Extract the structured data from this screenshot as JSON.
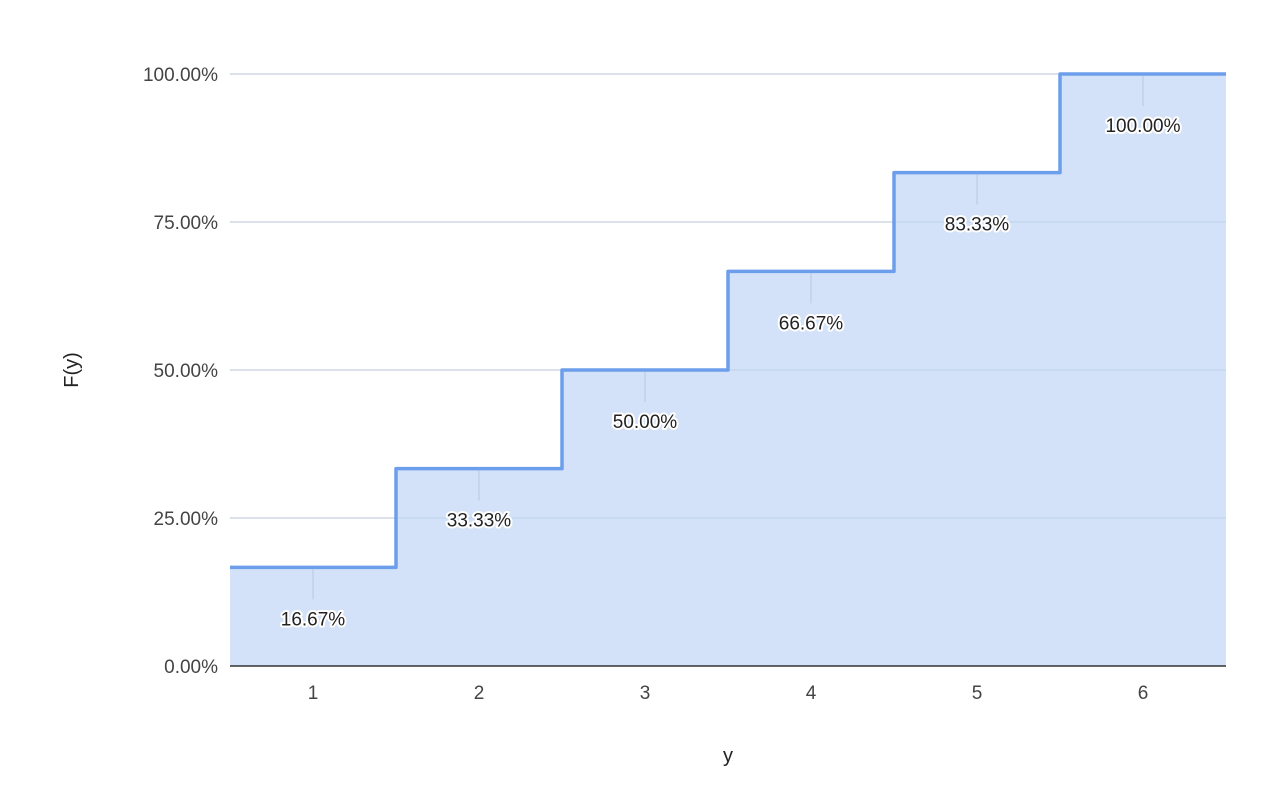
{
  "chart_data": {
    "type": "area",
    "subtype": "stepped",
    "title": "",
    "xlabel": "y",
    "ylabel": "F(y)",
    "categories": [
      "1",
      "2",
      "3",
      "4",
      "5",
      "6"
    ],
    "series": [
      {
        "values": [
          16.67,
          33.33,
          50.0,
          66.67,
          83.33,
          100.0
        ]
      }
    ],
    "data_labels": [
      "16.67%",
      "33.33%",
      "50.00%",
      "66.67%",
      "83.33%",
      "100.00%"
    ],
    "ylim": [
      0,
      100
    ],
    "yticks": [
      0,
      25,
      50,
      75,
      100
    ],
    "ytick_labels": [
      "0.00%",
      "25.00%",
      "50.00%",
      "75.00%",
      "100.00%"
    ],
    "grid": true,
    "legend": "none",
    "colors": {
      "line": "#6d9eeb",
      "fill": "#d3e2f8",
      "grid": "#cccccc",
      "axis": "#333333"
    }
  }
}
